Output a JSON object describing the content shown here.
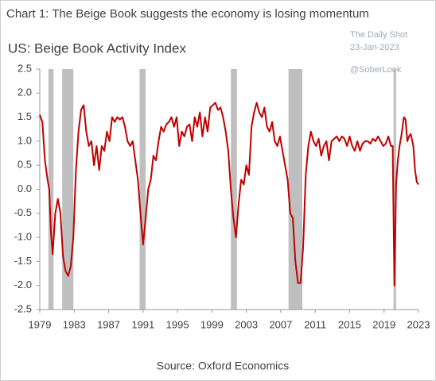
{
  "chart_data": {
    "type": "line",
    "title": "Chart 1: The Beige Book suggests the economy is losing momentum",
    "subtitle": "US: Beige Book Activity Index",
    "source": "Source: Oxford Economics",
    "annotations": [
      "The Daily Shot",
      "23-Jan-2023",
      "@SoberLook"
    ],
    "color": "#c00000",
    "shade_color": "#bfbfbf",
    "shaded_x": [
      [
        1980.0,
        1980.6
      ],
      [
        1981.6,
        1982.9
      ],
      [
        1990.6,
        1991.3
      ],
      [
        2001.2,
        2001.9
      ],
      [
        2007.9,
        2009.5
      ],
      [
        2020.1,
        2020.4
      ]
    ],
    "x": [
      1979.0,
      1979.3,
      1979.6,
      1979.9,
      1980.1,
      1980.3,
      1980.5,
      1980.8,
      1981.1,
      1981.4,
      1981.7,
      1982.0,
      1982.3,
      1982.6,
      1982.9,
      1983.2,
      1983.5,
      1983.8,
      1984.1,
      1984.4,
      1984.7,
      1985.0,
      1985.3,
      1985.6,
      1985.9,
      1986.2,
      1986.5,
      1986.8,
      1987.1,
      1987.4,
      1987.7,
      1988.0,
      1988.3,
      1988.6,
      1988.9,
      1989.2,
      1989.5,
      1989.8,
      1990.1,
      1990.4,
      1990.7,
      1991.0,
      1991.3,
      1991.6,
      1991.9,
      1992.2,
      1992.5,
      1992.8,
      1993.1,
      1993.4,
      1993.7,
      1994.0,
      1994.3,
      1994.6,
      1994.9,
      1995.2,
      1995.5,
      1995.8,
      1996.1,
      1996.4,
      1996.7,
      1997.0,
      1997.3,
      1997.6,
      1997.9,
      1998.2,
      1998.5,
      1998.8,
      1999.1,
      1999.4,
      1999.7,
      2000.0,
      2000.3,
      2000.6,
      2000.9,
      2001.2,
      2001.5,
      2001.8,
      2002.1,
      2002.4,
      2002.7,
      2003.0,
      2003.3,
      2003.6,
      2003.9,
      2004.2,
      2004.5,
      2004.8,
      2005.1,
      2005.4,
      2005.7,
      2006.0,
      2006.3,
      2006.6,
      2006.9,
      2007.2,
      2007.5,
      2007.8,
      2008.1,
      2008.4,
      2008.7,
      2009.0,
      2009.3,
      2009.6,
      2009.9,
      2010.2,
      2010.5,
      2010.8,
      2011.1,
      2011.4,
      2011.7,
      2012.0,
      2012.3,
      2012.6,
      2012.9,
      2013.2,
      2013.5,
      2013.8,
      2014.1,
      2014.4,
      2014.7,
      2015.0,
      2015.3,
      2015.6,
      2015.9,
      2016.2,
      2016.5,
      2016.8,
      2017.1,
      2017.4,
      2017.7,
      2018.0,
      2018.3,
      2018.6,
      2018.9,
      2019.2,
      2019.5,
      2019.8,
      2020.0,
      2020.2,
      2020.4,
      2020.6,
      2020.8,
      2021.0,
      2021.3,
      2021.5,
      2021.7,
      2021.9,
      2022.1,
      2022.4,
      2022.6,
      2022.8,
      2023.0
    ],
    "values": [
      1.55,
      1.4,
      0.6,
      0.2,
      0.0,
      -0.9,
      -1.35,
      -0.5,
      -0.2,
      -0.5,
      -1.4,
      -1.7,
      -1.8,
      -1.6,
      -1.0,
      0.4,
      1.2,
      1.65,
      1.75,
      1.2,
      0.9,
      1.0,
      0.5,
      0.9,
      0.4,
      0.9,
      0.8,
      1.2,
      1.0,
      1.5,
      1.4,
      1.5,
      1.45,
      1.5,
      1.3,
      1.0,
      0.9,
      1.0,
      0.6,
      0.2,
      -0.5,
      -1.15,
      -0.6,
      0.0,
      0.2,
      0.7,
      0.6,
      1.0,
      1.3,
      1.2,
      1.35,
      1.4,
      1.5,
      1.3,
      1.5,
      0.9,
      1.2,
      1.1,
      1.3,
      1.35,
      1.0,
      1.5,
      1.3,
      1.6,
      1.1,
      1.5,
      1.2,
      1.7,
      1.75,
      1.8,
      1.65,
      1.7,
      1.5,
      1.2,
      0.8,
      0.0,
      -0.6,
      -1.0,
      -0.3,
      0.2,
      0.1,
      0.5,
      0.3,
      1.3,
      1.6,
      1.8,
      1.6,
      1.5,
      1.7,
      1.3,
      1.2,
      1.4,
      1.0,
      0.9,
      1.1,
      0.8,
      0.5,
      0.2,
      -0.5,
      -0.6,
      -1.5,
      -1.95,
      -1.95,
      -1.2,
      0.3,
      0.9,
      1.2,
      1.0,
      0.9,
      1.05,
      0.7,
      0.9,
      1.0,
      0.6,
      1.0,
      1.05,
      1.1,
      1.0,
      1.1,
      1.05,
      0.9,
      1.1,
      0.9,
      0.8,
      1.0,
      0.8,
      0.95,
      1.0,
      1.0,
      0.95,
      1.05,
      1.0,
      1.1,
      1.0,
      0.9,
      0.95,
      1.1,
      0.9,
      0.9,
      -2.0,
      0.1,
      0.6,
      0.9,
      1.1,
      1.5,
      1.45,
      1.0,
      1.1,
      1.15,
      0.9,
      0.4,
      0.15,
      0.1
    ],
    "xlim": [
      1979,
      2023
    ],
    "xticks": [
      1979,
      1983,
      1987,
      1991,
      1995,
      1999,
      2003,
      2007,
      2011,
      2015,
      2019,
      2023
    ],
    "ylim": [
      -2.5,
      2.5
    ],
    "yticks": [
      2.5,
      {
        "value": 2.0,
        "label": "2.0"
      },
      1.5,
      {
        "value": 1.0,
        "label": "1.0"
      },
      0.5,
      {
        "value": 0.0,
        "label": "0.0"
      },
      -0.5,
      {
        "value": -1.0,
        "label": "-1.0"
      },
      -1.5,
      {
        "value": -2.0,
        "label": "-2.0"
      },
      -2.5
    ],
    "grid": false
  }
}
